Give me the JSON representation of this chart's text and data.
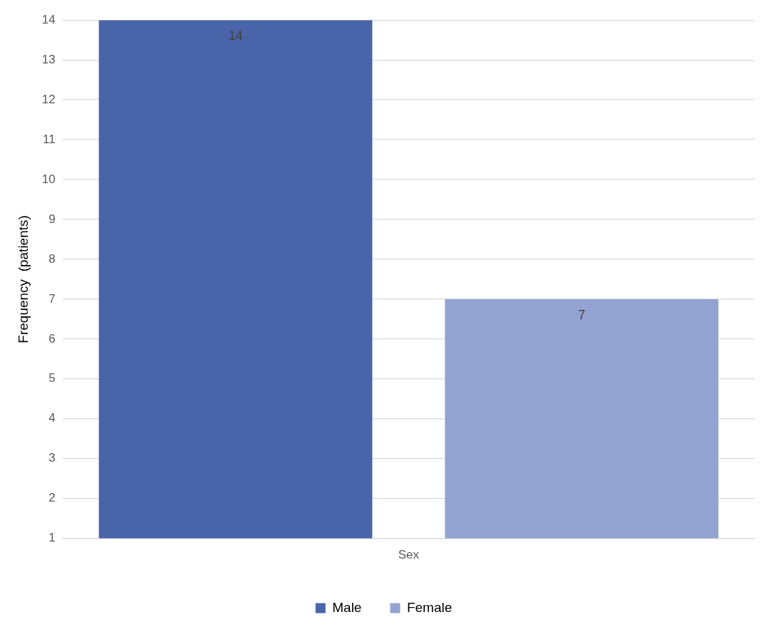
{
  "chart_data": {
    "type": "bar",
    "ylabel": "Frequency  (patients)",
    "categories": [
      "Sex"
    ],
    "series": [
      {
        "name": "Male",
        "color": "#4a64a9",
        "values": [
          14
        ]
      },
      {
        "name": "Female",
        "color": "#93a3d1",
        "values": [
          7
        ]
      }
    ],
    "ylim": [
      1,
      14
    ],
    "yticks": [
      1,
      2,
      3,
      4,
      5,
      6,
      7,
      8,
      9,
      10,
      11,
      12,
      13,
      14
    ],
    "grid": "y",
    "legend": "bottom",
    "data_labels": true
  }
}
